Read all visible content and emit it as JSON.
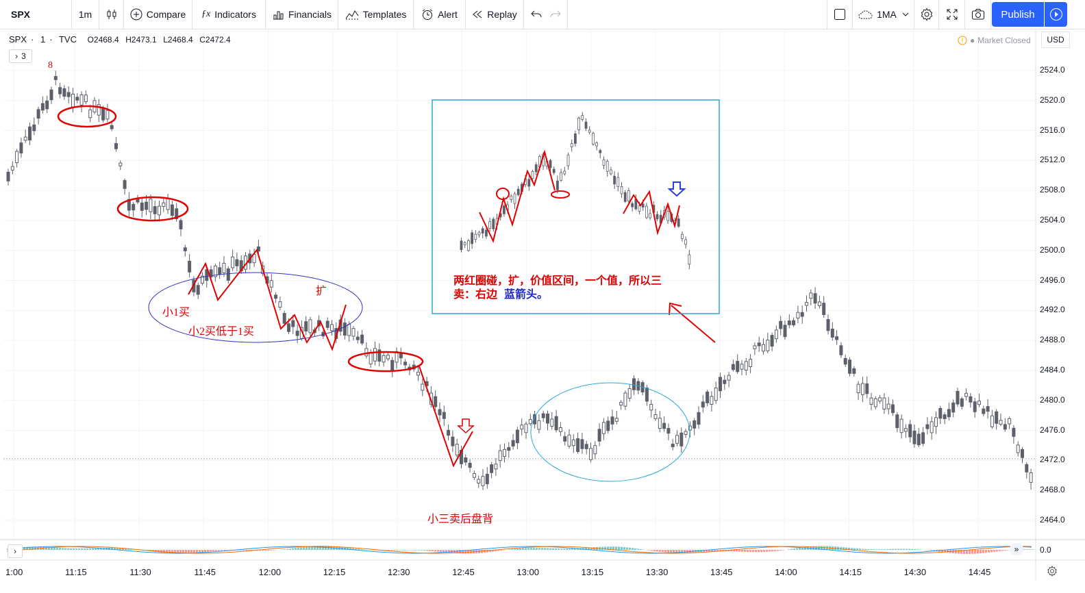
{
  "toolbar": {
    "symbol": "SPX",
    "interval": "1m",
    "compare": "Compare",
    "indicators": "Indicators",
    "financials": "Financials",
    "templates": "Templates",
    "alert": "Alert",
    "replay": "Replay",
    "layout_name": "1MA",
    "publish": "Publish"
  },
  "legend": {
    "symbol": "SPX",
    "interval": "1",
    "exchange": "TVC",
    "open": "O2468.4",
    "high": "H2473.1",
    "low": "L2468.4",
    "close": "C2472.4",
    "indicators_count": "3"
  },
  "status": {
    "market": "Market Closed",
    "currency": "USD"
  },
  "price_axis": [
    "2524.0",
    "2520.0",
    "2516.0",
    "2512.0",
    "2508.0",
    "2504.0",
    "2500.0",
    "2496.0",
    "2492.0",
    "2488.0",
    "2484.0",
    "2480.0",
    "2476.0",
    "2472.0",
    "2468.0",
    "2464.0"
  ],
  "osc_axis": "0.0",
  "time_axis": [
    "1:00",
    "11:15",
    "11:30",
    "11:45",
    "12:00",
    "12:15",
    "12:30",
    "12:45",
    "13:00",
    "13:15",
    "13:30",
    "13:45",
    "14:00",
    "14:15",
    "14:30",
    "14:45"
  ],
  "annotations": {
    "top_label": "8",
    "buy1": "小1买",
    "buy2": "小2买低于1买",
    "expand": "扩",
    "sell3": "小三卖后盘背",
    "note_red": "两红圈碰，扩，价值区间，一个值，所以三",
    "note_red2": "卖：右边",
    "note_blue": "蓝箭头。"
  },
  "colors": {
    "accent": "#2962ff",
    "up": "#ffffff",
    "down": "#5d606b",
    "annot_red": "#e00000",
    "annot_blue": "#1d28c8"
  }
}
